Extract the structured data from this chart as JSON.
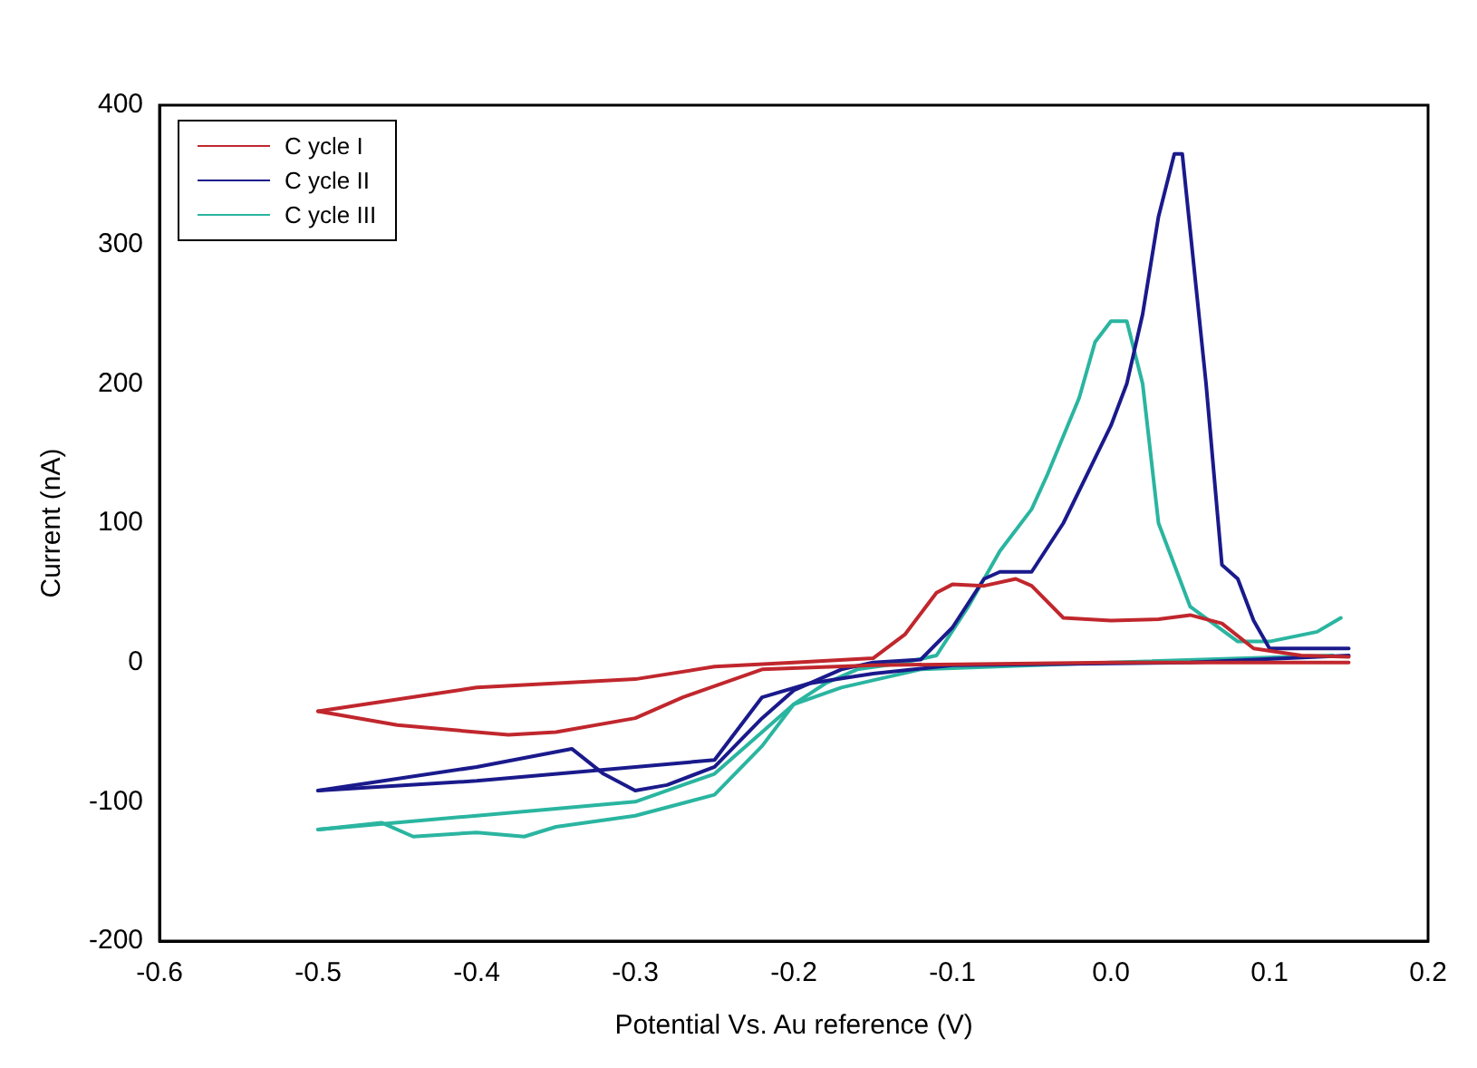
{
  "chart_data": {
    "type": "line",
    "xlabel": "Potential Vs. Au reference (V)",
    "ylabel": "Current (nA)",
    "xlim": [
      -0.6,
      0.2
    ],
    "xticks": [
      -0.6,
      -0.5,
      -0.4,
      -0.3,
      -0.2,
      -0.1,
      {
        "value": 0,
        "label": "0.0"
      },
      0.1,
      0.2
    ],
    "ylim": [
      -200,
      400
    ],
    "yticks": [
      -200,
      -100,
      0,
      100,
      200,
      300,
      400
    ],
    "grid": false,
    "legend": "top left",
    "marker": "none",
    "line_style": "solid",
    "series": [
      {
        "name": "C ycle I",
        "color": "#c0272d",
        "x": [
          -0.5,
          -0.4,
          -0.3,
          -0.25,
          -0.2,
          -0.15,
          -0.13,
          -0.11,
          -0.1,
          -0.08,
          -0.06,
          -0.05,
          -0.03,
          0,
          0.03,
          0.05,
          0.07,
          0.09,
          0.12,
          0.15
        ],
        "values": [
          -35,
          -18,
          -12,
          -3,
          0,
          3,
          20,
          50,
          56,
          55,
          60,
          55,
          32,
          30,
          31,
          34,
          28,
          10,
          5,
          4
        ]
      },
      {
        "color": "#c0272d",
        "x": [
          -0.5,
          -0.45,
          -0.38,
          -0.35,
          -0.3,
          -0.27,
          -0.22,
          -0.15,
          0,
          0.15
        ],
        "values": [
          -35,
          -45,
          -52,
          -50,
          -40,
          -25,
          -5,
          -2,
          0,
          0
        ]
      },
      {
        "name": "C ycle II",
        "color": "#1a1a8c",
        "x": [
          -0.5,
          -0.4,
          -0.34,
          -0.32,
          -0.3,
          -0.28,
          -0.25,
          -0.22,
          -0.2,
          -0.17,
          -0.15,
          -0.12,
          -0.1,
          -0.08,
          -0.07,
          -0.05,
          -0.03,
          0,
          0.01,
          0.02,
          0.03,
          0.04,
          0.045,
          0.06,
          0.07,
          0.08,
          0.09,
          0.1,
          0.15
        ],
        "values": [
          -92,
          -75,
          -62,
          -80,
          -92,
          -88,
          -75,
          -40,
          -20,
          -5,
          0,
          2,
          25,
          60,
          65,
          65,
          100,
          170,
          200,
          250,
          320,
          365,
          365,
          200,
          70,
          60,
          30,
          10,
          10
        ]
      },
      {
        "color": "#1a1a8c",
        "x": [
          -0.5,
          -0.4,
          -0.3,
          -0.25,
          -0.22,
          -0.19,
          -0.15,
          -0.1,
          0.05,
          0.15
        ],
        "values": [
          -92,
          -85,
          -75,
          -70,
          -25,
          -15,
          -8,
          -2,
          0,
          5
        ]
      },
      {
        "name": "C ycle III",
        "color": "#2ab5a0",
        "x": [
          -0.5,
          -0.46,
          -0.44,
          -0.4,
          -0.37,
          -0.35,
          -0.3,
          -0.25,
          -0.22,
          -0.2,
          -0.18,
          -0.16,
          -0.13,
          -0.11,
          -0.09,
          -0.07,
          -0.05,
          -0.04,
          -0.02,
          -0.01,
          0,
          0.01,
          0.02,
          0.03,
          0.05,
          0.08,
          0.1,
          0.13,
          0.145
        ],
        "values": [
          -120,
          -115,
          -125,
          -122,
          -125,
          -118,
          -110,
          -95,
          -60,
          -30,
          -15,
          -5,
          0,
          5,
          40,
          80,
          110,
          135,
          190,
          230,
          245,
          245,
          200,
          100,
          40,
          15,
          15,
          22,
          32
        ]
      },
      {
        "color": "#2ab5a0",
        "x": [
          -0.5,
          -0.4,
          -0.3,
          -0.25,
          -0.2,
          -0.17,
          -0.12,
          0,
          0.14
        ],
        "values": [
          -120,
          -110,
          -100,
          -80,
          -30,
          -18,
          -5,
          0,
          5
        ]
      }
    ]
  }
}
